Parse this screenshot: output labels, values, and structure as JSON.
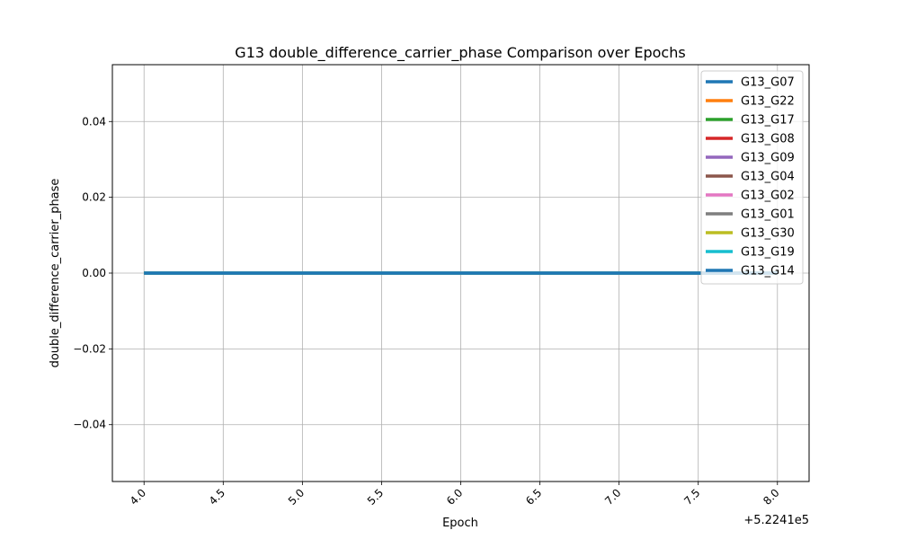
{
  "chart_data": {
    "type": "line",
    "title": "G13 double_difference_carrier_phase Comparison over Epochs",
    "xlabel": "Epoch",
    "ylabel": "double_difference_carrier_phase",
    "x_offset_label": "+5.2241e5",
    "xlim": [
      3.8,
      8.2
    ],
    "ylim": [
      -0.055,
      0.055
    ],
    "xticks": [
      4.0,
      4.5,
      5.0,
      5.5,
      6.0,
      6.5,
      7.0,
      7.5,
      8.0
    ],
    "xtick_labels": [
      "4.0",
      "4.5",
      "5.0",
      "5.5",
      "6.0",
      "6.5",
      "7.0",
      "7.5",
      "8.0"
    ],
    "yticks": [
      0.04,
      0.02,
      0.0,
      -0.02,
      -0.04
    ],
    "ytick_labels": [
      "0.04",
      "0.02",
      "0.00",
      "−0.02",
      "−0.04"
    ],
    "grid": true,
    "legend_position": "top-right",
    "x": [
      4.0,
      5.0,
      6.0,
      7.0,
      8.0
    ],
    "series": [
      {
        "name": "G13_G07",
        "color": "#1f77b4",
        "values": [
          0,
          0,
          0,
          0,
          0
        ]
      },
      {
        "name": "G13_G22",
        "color": "#ff7f0e",
        "values": [
          0,
          0,
          0,
          0,
          0
        ]
      },
      {
        "name": "G13_G17",
        "color": "#2ca02c",
        "values": [
          0,
          0,
          0,
          0,
          0
        ]
      },
      {
        "name": "G13_G08",
        "color": "#d62728",
        "values": [
          0,
          0,
          0,
          0,
          0
        ]
      },
      {
        "name": "G13_G09",
        "color": "#9467bd",
        "values": [
          0,
          0,
          0,
          0,
          0
        ]
      },
      {
        "name": "G13_G04",
        "color": "#8c564b",
        "values": [
          0,
          0,
          0,
          0,
          0
        ]
      },
      {
        "name": "G13_G02",
        "color": "#e377c2",
        "values": [
          0,
          0,
          0,
          0,
          0
        ]
      },
      {
        "name": "G13_G01",
        "color": "#7f7f7f",
        "values": [
          0,
          0,
          0,
          0,
          0
        ]
      },
      {
        "name": "G13_G30",
        "color": "#bcbd22",
        "values": [
          0,
          0,
          0,
          0,
          0
        ]
      },
      {
        "name": "G13_G19",
        "color": "#17becf",
        "values": [
          0,
          0,
          0,
          0,
          0
        ]
      },
      {
        "name": "G13_G14",
        "color": "#1f77b4",
        "values": [
          0,
          0,
          0,
          0,
          0
        ]
      }
    ]
  }
}
